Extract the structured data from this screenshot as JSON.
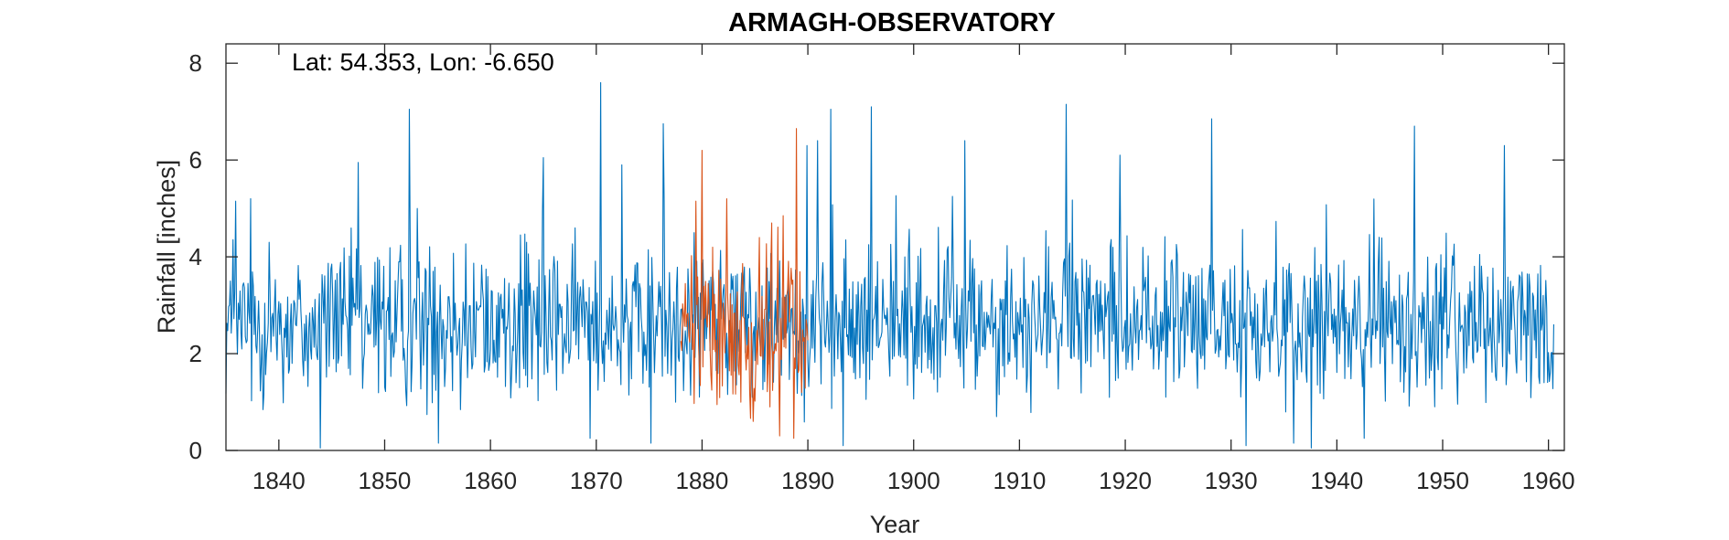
{
  "chart_data": {
    "type": "line",
    "title": "ARMAGH-OBSERVATORY",
    "annotation": "Lat: 54.353, Lon: -6.650",
    "xlabel": "Year",
    "ylabel": "Rainfall [inches]",
    "xlim": [
      1835,
      1961.5
    ],
    "ylim": [
      0,
      8.4
    ],
    "xticks": [
      1840,
      1850,
      1860,
      1870,
      1880,
      1890,
      1900,
      1910,
      1920,
      1930,
      1940,
      1950,
      1960
    ],
    "yticks": [
      0,
      2,
      4,
      6,
      8
    ],
    "grid": false,
    "box": true,
    "sampling": "monthly",
    "series": [
      {
        "color": "#0072BD",
        "x_start": 1835.0,
        "x_end": 1960.5,
        "mean": 2.6,
        "peaks": [
          [
            1835.9,
            5.15
          ],
          [
            1839.1,
            4.3
          ],
          [
            1847.5,
            5.95
          ],
          [
            1852.3,
            7.05
          ],
          [
            1853.1,
            5.0
          ],
          [
            1865.0,
            6.05
          ],
          [
            1870.4,
            7.6
          ],
          [
            1872.4,
            5.9
          ],
          [
            1876.3,
            6.75
          ],
          [
            1889.9,
            6.3
          ],
          [
            1890.9,
            6.4
          ],
          [
            1892.2,
            7.05
          ],
          [
            1896.0,
            7.1
          ],
          [
            1904.8,
            6.4
          ],
          [
            1914.4,
            7.15
          ],
          [
            1919.5,
            6.1
          ],
          [
            1928.2,
            6.85
          ],
          [
            1947.3,
            6.7
          ],
          [
            1955.8,
            6.3
          ]
        ],
        "troughs": [
          [
            1843.9,
            0.05
          ],
          [
            1855.1,
            0.15
          ],
          [
            1869.4,
            0.25
          ],
          [
            1875.2,
            0.15
          ],
          [
            1893.3,
            0.1
          ],
          [
            1931.4,
            0.1
          ],
          [
            1935.9,
            0.15
          ],
          [
            1937.6,
            0.05
          ],
          [
            1942.6,
            0.25
          ]
        ]
      },
      {
        "color": "#D95319",
        "x_start": 1878.0,
        "x_end": 1890.0,
        "mean": 2.45,
        "peaks": [
          [
            1879.4,
            5.15
          ],
          [
            1880.0,
            6.2
          ],
          [
            1881.0,
            4.2
          ],
          [
            1882.3,
            5.2
          ],
          [
            1885.4,
            4.4
          ],
          [
            1886.6,
            4.7
          ],
          [
            1887.7,
            4.85
          ],
          [
            1888.9,
            6.65
          ]
        ],
        "troughs": [
          [
            1884.8,
            0.6
          ],
          [
            1886.4,
            0.9
          ],
          [
            1887.3,
            0.3
          ],
          [
            1888.7,
            0.25
          ]
        ]
      }
    ]
  }
}
